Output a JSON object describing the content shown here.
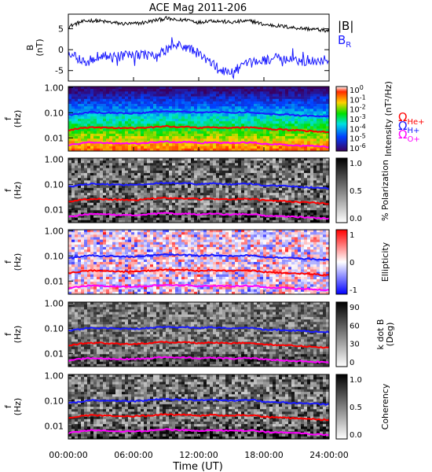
{
  "title": "ACE Mag 2011-206",
  "colors": {
    "B_total": "#000000",
    "B_R": "#1a1aff",
    "omega_H": "#1a1aff",
    "omega_He": "#ff0000",
    "omega_O": "#ff00ff"
  },
  "legend": {
    "B_total": "|B|",
    "B_R_main": "B",
    "B_R_sub": "R",
    "omega_H_main": "Ω",
    "omega_H_sub": "H+",
    "omega_He_main": "Ω",
    "omega_He_sub": "He+",
    "omega_O_main": "Ω",
    "omega_O_sub": "O+"
  },
  "chart_data": [
    {
      "type": "line",
      "name": "magnetic-field",
      "ylabel": [
        "B",
        "(nT)"
      ],
      "y_ticks": [
        "5",
        "0",
        "-5"
      ],
      "y_tick_values": [
        5,
        0,
        -5
      ],
      "ylim": [
        -7.5,
        8.5
      ],
      "xlim_hours": [
        0,
        24
      ],
      "series": [
        {
          "name": "|B|",
          "color": "#000000",
          "x_hours": [
            0,
            1,
            2,
            3,
            4,
            5,
            6,
            7,
            8,
            9,
            10,
            11,
            12,
            13,
            14,
            15,
            16,
            17,
            18,
            19,
            20,
            21,
            22,
            23,
            24
          ],
          "values": [
            5.5,
            6.5,
            7.0,
            6.8,
            6.5,
            6.2,
            6.2,
            6.5,
            7.0,
            7.5,
            7.0,
            7.2,
            6.5,
            7.0,
            6.8,
            6.5,
            6.8,
            6.8,
            6.0,
            5.8,
            5.5,
            5.2,
            5.0,
            4.8,
            4.5
          ]
        },
        {
          "name": "B_R",
          "color": "#1a1aff",
          "x_hours": [
            0,
            1,
            2,
            3,
            4,
            5,
            6,
            7,
            8,
            9,
            10,
            11,
            12,
            13,
            14,
            15,
            16,
            17,
            18,
            19,
            20,
            21,
            22,
            23,
            24
          ],
          "values": [
            -1.5,
            -2.0,
            -3.0,
            -1.0,
            -2.0,
            -1.5,
            -1.5,
            -1.0,
            -2.0,
            0.0,
            1.0,
            0.5,
            -1.0,
            -3.0,
            -5.0,
            -5.5,
            -4.0,
            -3.0,
            -2.5,
            -2.0,
            -2.5,
            -2.5,
            -3.0,
            -2.5,
            -2.5
          ]
        }
      ]
    },
    {
      "type": "heatmap",
      "name": "intensity",
      "ylabel": [
        "f",
        "(Hz)"
      ],
      "y_ticks": [
        "1.00",
        "0.10",
        "0.01"
      ],
      "colorbar_label": "Intensity (nT²/Hz)",
      "colorbar_ticks_exponent": [
        0,
        -1,
        -2,
        -3,
        -4,
        -5,
        -6
      ]
    },
    {
      "type": "heatmap",
      "name": "polarization",
      "ylabel": [
        "f",
        "(Hz)"
      ],
      "y_ticks": [
        "1.00",
        "0.10",
        "0.01"
      ],
      "colorbar_label": "% Polarization",
      "colorbar_ticks": [
        "1.0",
        "0.5",
        "0.0"
      ]
    },
    {
      "type": "heatmap",
      "name": "ellipticity",
      "ylabel": [
        "f",
        "(Hz)"
      ],
      "y_ticks": [
        "1.00",
        "0.10",
        "0.01"
      ],
      "colorbar_label": "Ellipticity",
      "colorbar_ticks": [
        "1",
        "0",
        "-1"
      ]
    },
    {
      "type": "heatmap",
      "name": "k-dot-b",
      "ylabel": [
        "f",
        "(Hz)"
      ],
      "y_ticks": [
        "1.00",
        "0.10",
        "0.01"
      ],
      "colorbar_label": [
        "k dot B",
        "(Deg)"
      ],
      "colorbar_ticks": [
        "90",
        "60",
        "30",
        "0"
      ]
    },
    {
      "type": "heatmap",
      "name": "coherency",
      "ylabel": [
        "f",
        "(Hz)"
      ],
      "y_ticks": [
        "1.00",
        "0.10",
        "0.01"
      ],
      "colorbar_label": "Coherency",
      "colorbar_ticks": [
        "1.0",
        "0.5",
        "0.0"
      ]
    }
  ],
  "gyrofrequency_lines": {
    "x_hours": [
      0,
      1,
      2,
      3,
      4,
      5,
      6,
      7,
      8,
      9,
      10,
      11,
      12,
      13,
      14,
      15,
      16,
      17,
      18,
      19,
      20,
      21,
      22,
      23,
      24
    ],
    "omega_H_Hz": [
      0.08,
      0.09,
      0.105,
      0.1,
      0.1,
      0.095,
      0.095,
      0.1,
      0.11,
      0.115,
      0.11,
      0.11,
      0.1,
      0.11,
      0.105,
      0.1,
      0.105,
      0.105,
      0.09,
      0.088,
      0.085,
      0.08,
      0.076,
      0.074,
      0.07
    ],
    "omega_He_Hz": [
      0.02,
      0.024,
      0.026,
      0.026,
      0.025,
      0.024,
      0.024,
      0.025,
      0.027,
      0.029,
      0.027,
      0.028,
      0.025,
      0.027,
      0.026,
      0.025,
      0.026,
      0.026,
      0.023,
      0.022,
      0.021,
      0.02,
      0.019,
      0.018,
      0.017
    ],
    "omega_O_Hz": [
      0.005,
      0.006,
      0.0066,
      0.0064,
      0.0062,
      0.006,
      0.006,
      0.0062,
      0.0067,
      0.0072,
      0.0067,
      0.0069,
      0.0062,
      0.0067,
      0.0065,
      0.0062,
      0.0065,
      0.0065,
      0.0057,
      0.0055,
      0.0053,
      0.005,
      0.0048,
      0.0046,
      0.0043
    ]
  },
  "x_axis": {
    "label": "Time (UT)",
    "ticks": [
      "00:00:00",
      "06:00:00",
      "12:00:00",
      "18:00:00",
      "24:00:00"
    ],
    "tick_hours": [
      0,
      6,
      12,
      18,
      24
    ]
  }
}
